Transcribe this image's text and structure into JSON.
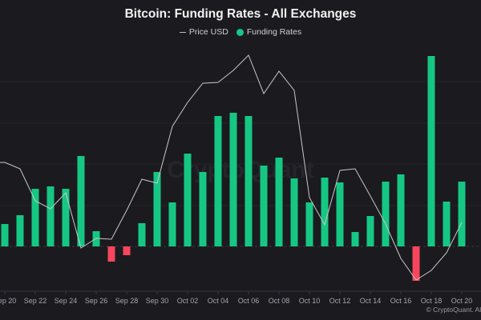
{
  "chart_data": {
    "type": "bar",
    "title": "Bitcoin: Funding Rates - All Exchanges",
    "legend": [
      {
        "name": "Price USD",
        "kind": "line",
        "color": "#c8c8c8"
      },
      {
        "name": "Funding Rates",
        "kind": "bar",
        "color": "#16c784"
      }
    ],
    "legend_placement": "top-center",
    "positive_color": "#16c784",
    "negative_color": "#f6465d",
    "grid": true,
    "watermark": "CryptoQuant",
    "footer": "© CryptoQuant. All",
    "x_tick_labels": [
      "Sep 20",
      "Sep 22",
      "Sep 24",
      "Sep 26",
      "Sep 28",
      "Sep 30",
      "Oct 02",
      "Oct 04",
      "Oct 06",
      "Oct 08",
      "Oct 10",
      "Oct 12",
      "Oct 14",
      "Oct 16",
      "Oct 18",
      "Oct 20"
    ],
    "categories": [
      "Sep 20",
      "Sep 21",
      "Sep 22",
      "Sep 23",
      "Sep 24",
      "Sep 25",
      "Sep 26",
      "Sep 27",
      "Sep 28",
      "Sep 29",
      "Sep 30",
      "Oct 01",
      "Oct 02",
      "Oct 03",
      "Oct 04",
      "Oct 05",
      "Oct 06",
      "Oct 07",
      "Oct 08",
      "Oct 09",
      "Oct 10",
      "Oct 11",
      "Oct 12",
      "Oct 13",
      "Oct 14",
      "Oct 15",
      "Oct 16",
      "Oct 17",
      "Oct 18",
      "Oct 19",
      "Oct 20"
    ],
    "series": [
      {
        "name": "Funding Rates",
        "type": "bar",
        "values": [
          28,
          39,
          72,
          75,
          72,
          113,
          19,
          -19,
          -11,
          29,
          93,
          55,
          116,
          93,
          163,
          167,
          163,
          101,
          111,
          85,
          55,
          86,
          80,
          18,
          38,
          81,
          90,
          -43,
          238,
          56,
          81
        ]
      },
      {
        "name": "Price USD",
        "type": "line",
        "values": [
          197,
          189,
          149,
          139,
          159,
          90,
          102,
          101,
          137,
          176,
          171,
          242,
          272,
          296,
          297,
          312,
          331,
          283,
          311,
          287,
          153,
          119,
          187,
          189,
          155,
          120,
          77,
          50,
          62,
          84,
          122
        ]
      }
    ],
    "value_units": "relative (no y-axis printed)"
  }
}
